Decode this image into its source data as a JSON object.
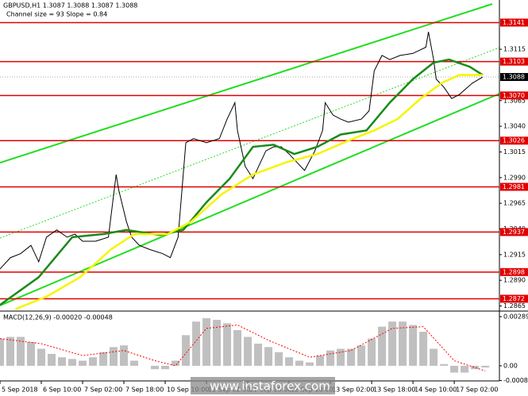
{
  "chart_data": [
    {
      "type": "line",
      "header": "GBPUSD,H1  1.3087 1.3088 1.3087 1.3088",
      "subheader": "Channel size = 93 Slope = 0.84",
      "xlim": [
        0,
        193.5
      ],
      "ylim": [
        1.286,
        1.3163
      ],
      "yticks": [
        1.3115,
        {
          "value": 1.3065,
          "label": "1.3065"
        },
        {
          "value": 1.304,
          "label": "1.3040"
        },
        1.3015,
        {
          "value": 1.299,
          "label": "1.2990"
        },
        1.2965,
        {
          "value": 1.294,
          "label": "1.2940"
        },
        1.2915,
        {
          "value": 1.289,
          "label": "1.2890"
        },
        1.2865
      ],
      "levels": [
        1.3141,
        1.3103,
        {
          "value": 1.307,
          "label": "1.3070"
        },
        1.3026,
        1.2981,
        1.2937,
        1.2898,
        1.2872
      ],
      "level_color": "#e00000",
      "last_price": 1.3088,
      "series": [
        {
          "color": "#000000",
          "x": [
            0,
            4,
            8,
            12,
            15,
            18,
            22,
            26,
            29,
            32,
            37,
            42,
            45,
            46,
            49,
            51,
            54,
            58,
            63,
            66,
            69,
            72,
            75,
            80,
            85,
            88,
            91,
            92,
            95,
            98,
            103,
            106,
            109,
            112,
            115,
            118,
            122,
            125,
            126,
            129,
            132,
            135,
            140,
            143,
            145,
            148,
            151,
            155,
            160,
            165,
            166,
            168,
            169,
            172,
            175,
            178,
            183,
            187
          ],
          "values": [
            1.2901,
            1.2912,
            1.2916,
            1.2924,
            1.2908,
            1.2932,
            1.2939,
            1.2932,
            1.2935,
            1.2928,
            1.2928,
            1.2932,
            1.2993,
            1.2978,
            1.2947,
            1.2932,
            1.2924,
            1.292,
            1.2916,
            1.2912,
            1.2932,
            1.3024,
            1.3028,
            1.3024,
            1.3028,
            1.3047,
            1.3063,
            1.3036,
            1.3001,
            1.2989,
            1.3016,
            1.302,
            1.302,
            1.3013,
            1.3005,
            1.2997,
            1.3016,
            1.3036,
            1.3063,
            1.3051,
            1.3047,
            1.3044,
            1.3047,
            1.3055,
            1.3094,
            1.3109,
            1.3105,
            1.3109,
            1.3111,
            1.3117,
            1.3132,
            1.3105,
            1.3086,
            1.3078,
            1.3067,
            1.3071,
            1.3082,
            1.3088
          ]
        },
        {
          "color": "#1a8a1a",
          "x": [
            0,
            15,
            28,
            40,
            49,
            62,
            71,
            80,
            89,
            98,
            106,
            114,
            123,
            132,
            142,
            151,
            160,
            168,
            174,
            182,
            187
          ],
          "values": [
            1.2866,
            1.2893,
            1.2932,
            1.2935,
            1.2939,
            1.2934,
            1.2939,
            1.2966,
            1.2989,
            1.302,
            1.3022,
            1.3013,
            1.302,
            1.3032,
            1.3036,
            1.3063,
            1.3086,
            1.3102,
            1.3105,
            1.3098,
            1.309
          ]
        },
        {
          "color": "#f5f500",
          "x": [
            6,
            18,
            31,
            43,
            52,
            65,
            74,
            86,
            98,
            111,
            123,
            135,
            145,
            154,
            163,
            171,
            178,
            187
          ],
          "values": [
            1.2862,
            1.2874,
            1.2893,
            1.292,
            1.2935,
            1.2935,
            1.2947,
            1.2974,
            1.2993,
            1.3005,
            1.3013,
            1.3026,
            1.3036,
            1.3047,
            1.3067,
            1.3082,
            1.309,
            1.309
          ]
        }
      ]
    },
    {
      "type": "bar",
      "header": "MACD(12,26,9) -0.00020 -0.00048",
      "xlim": [
        0,
        193.5
      ],
      "xticks": [
        {
          "value": 0,
          "label": "5 Sep 2018"
        },
        {
          "value": 16,
          "label": "6 Sep 10:00"
        },
        {
          "value": 32,
          "label": "7 Sep 02:00"
        },
        {
          "value": 48,
          "label": "7 Sep 18:00"
        },
        {
          "value": 64,
          "label": "10 Sep 10:00"
        },
        {
          "value": 80,
          "label": "11 Sep 02:00"
        },
        {
          "value": 96,
          "label": "11 Sep 18:00"
        },
        {
          "value": 112,
          "label": "12 Sep 10:00"
        },
        {
          "value": 128,
          "label": "13 Sep 02:00"
        },
        {
          "value": 144,
          "label": "13 Sep 18:00"
        },
        {
          "value": 160,
          "label": "14 Sep 10:00"
        },
        {
          "value": 176,
          "label": "17 Sep 02:00"
        }
      ],
      "ylim": [
        -0.00089,
        0.00317
      ],
      "yticks": [
        0.00289,
        {
          "value": 0,
          "label": "0.00"
        },
        -0.00087
      ],
      "series": [
        {
          "color": "#c0c0c0",
          "x": [
            0,
            4,
            8,
            12,
            16,
            20,
            24,
            28,
            32,
            36,
            40,
            44,
            48,
            52,
            56,
            60,
            64,
            68,
            72,
            76,
            80,
            84,
            88,
            92,
            96,
            100,
            104,
            108,
            112,
            116,
            120,
            124,
            128,
            132,
            136,
            140,
            144,
            148,
            152,
            156,
            160,
            164,
            168,
            172,
            176,
            180,
            184,
            188
          ],
          "values": [
            0.0016,
            0.0017,
            0.0017,
            0.0014,
            0.001,
            0.0007,
            0.0005,
            0.0004,
            0.0003,
            0.0005,
            0.0008,
            0.0011,
            0.0012,
            0.0003,
            0,
            -0.0002,
            -0.0002,
            0.0003,
            0.0018,
            0.0026,
            0.0028,
            0.0027,
            0.0025,
            0.0021,
            0.0017,
            0.0013,
            0.0011,
            0.0008,
            0.0005,
            0.0003,
            0.0002,
            0.0006,
            0.0009,
            0.001,
            0.001,
            0.0012,
            0.0016,
            0.0023,
            0.0026,
            0.0026,
            0.0024,
            0.002,
            0.001,
            0.0001,
            -0.0004,
            -0.0004,
            -0.0002,
            -0.0001
          ]
        },
        {
          "color": "#ff0000",
          "x": [
            0,
            16,
            32,
            48,
            60,
            68,
            80,
            92,
            104,
            120,
            136,
            152,
            164,
            176,
            188
          ],
          "values": [
            0.0016,
            0.0013,
            0.0006,
            0.0009,
            0.0003,
            0,
            0.0022,
            0.0024,
            0.0015,
            0.0005,
            0.0009,
            0.0022,
            0.0023,
            0.0003,
            -0.0003
          ]
        }
      ]
    }
  ],
  "watermark": "www.instaforex.com"
}
